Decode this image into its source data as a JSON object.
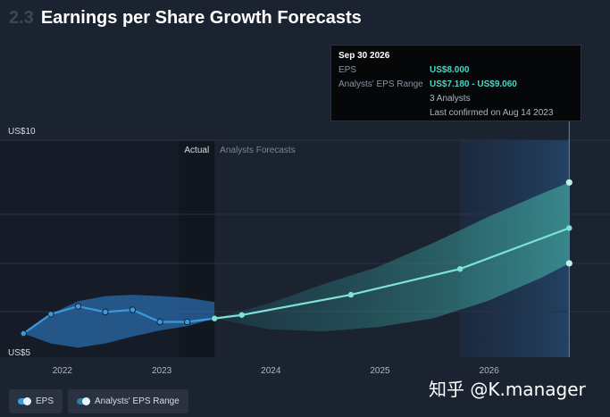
{
  "header": {
    "section_number": "2.3",
    "title": "Earnings per Share Growth Forecasts"
  },
  "tooltip": {
    "date": "Sep 30 2026",
    "eps_label": "EPS",
    "eps_value": "US$8.000",
    "range_label": "Analysts' EPS Range",
    "range_value": "US$7.180 - US$9.060",
    "analysts": "3 Analysts",
    "confirmed": "Last confirmed on Aug 14 2023"
  },
  "legend": {
    "eps_label": "EPS",
    "range_label": "Analysts' EPS Range"
  },
  "watermark": "知乎 @K.manager",
  "chart_data": {
    "type": "area",
    "actual_label": "Actual",
    "forecast_label": "Analysts Forecasts",
    "ylim": [
      5,
      10
    ],
    "xlim": [
      2021.6,
      2026.85
    ],
    "y_ticks": [
      {
        "value": 10,
        "label": "US$10"
      },
      {
        "value": 5,
        "label": "US$5"
      }
    ],
    "x_ticks": [
      {
        "value": 2022,
        "label": "2022"
      },
      {
        "value": 2023,
        "label": "2023"
      },
      {
        "value": 2024,
        "label": "2024"
      },
      {
        "value": 2025,
        "label": "2025"
      },
      {
        "value": 2026,
        "label": "2026"
      }
    ],
    "actual_end": 2023.5,
    "highlight_start": 2025.75,
    "highlight_end": 2026.75,
    "series": [
      {
        "name": "EPS",
        "kind": "actual",
        "color": "#3a9ae0",
        "x": [
          2021.75,
          2022.0,
          2022.25,
          2022.5,
          2022.75,
          2023.0,
          2023.25,
          2023.5
        ],
        "y": [
          5.55,
          6.0,
          6.18,
          6.05,
          6.1,
          5.82,
          5.82,
          5.9
        ]
      },
      {
        "name": "EPS",
        "kind": "forecast",
        "color": "#7ee3d6",
        "x": [
          2023.5,
          2023.75,
          2024.75,
          2025.75,
          2026.75
        ],
        "y": [
          5.9,
          5.98,
          6.45,
          7.05,
          8.0
        ]
      }
    ],
    "actual_range": {
      "x": [
        2021.75,
        2022.0,
        2022.25,
        2022.5,
        2022.75,
        2023.0,
        2023.25,
        2023.5
      ],
      "low": [
        5.55,
        5.32,
        5.22,
        5.32,
        5.48,
        5.62,
        5.72,
        5.9
      ],
      "high": [
        5.55,
        6.0,
        6.3,
        6.42,
        6.45,
        6.42,
        6.38,
        6.28
      ]
    },
    "forecast_range": {
      "x": [
        2023.5,
        2024.0,
        2024.5,
        2025.0,
        2025.5,
        2026.0,
        2026.5,
        2026.75
      ],
      "low": [
        5.9,
        5.65,
        5.6,
        5.7,
        5.9,
        6.3,
        6.85,
        7.18
      ],
      "high": [
        5.9,
        6.25,
        6.7,
        7.1,
        7.65,
        8.25,
        8.8,
        9.06
      ]
    },
    "range_end_points": {
      "x": 2026.75,
      "low": 7.18,
      "high": 9.06
    }
  }
}
